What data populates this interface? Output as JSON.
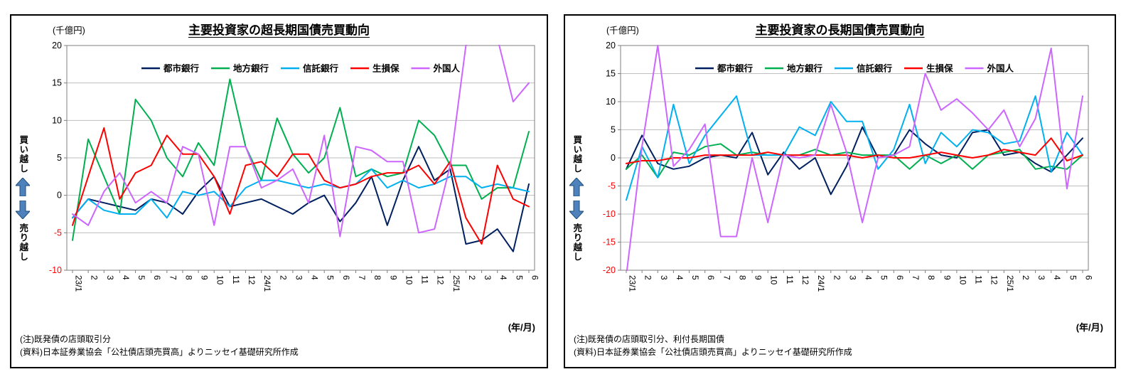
{
  "chart_data": [
    {
      "type": "line",
      "title": "主要投資家の超長期国債売買動向",
      "unit": "(千億円)",
      "x_caption": "(年/月)",
      "buy_label": "買い越し",
      "sell_label": "売り越し",
      "grid": true,
      "legend_position": "top-inside",
      "ylim": [
        -10,
        20
      ],
      "ytick_step": 5,
      "categories": [
        "23/1",
        "2",
        "3",
        "4",
        "5",
        "6",
        "7",
        "8",
        "9",
        "10",
        "11",
        "12",
        "24/1",
        "2",
        "3",
        "4",
        "5",
        "6",
        "7",
        "8",
        "9",
        "10",
        "11",
        "12",
        "25/1",
        "2",
        "3",
        "4",
        "5",
        "6"
      ],
      "series": [
        {
          "name": "都市銀行",
          "color": "#002060",
          "values": [
            -3,
            -0.5,
            -1,
            -1.5,
            -2,
            -0.5,
            -1,
            -2.5,
            0.5,
            2.5,
            -1.5,
            -1,
            -0.5,
            -1.5,
            -2.5,
            -1,
            0,
            -3.5,
            -1,
            2.5,
            -4,
            2,
            6.5,
            2,
            3.5,
            -6.5,
            -6,
            -4.5,
            -7.5,
            1.5
          ]
        },
        {
          "name": "地方銀行",
          "color": "#00B050",
          "values": [
            -6,
            7.5,
            2.5,
            -2.5,
            12.8,
            10,
            5,
            2.5,
            7,
            4,
            15.5,
            6.5,
            2,
            10.3,
            5.5,
            3,
            5,
            11.7,
            2.5,
            3.5,
            2.5,
            3,
            10,
            8,
            4,
            4,
            -0.5,
            1,
            1,
            8.5
          ]
        },
        {
          "name": "信託銀行",
          "color": "#00B0F0",
          "values": [
            -3,
            -0.5,
            -2,
            -2.5,
            -2.5,
            -0.5,
            -3,
            0.5,
            0,
            0.5,
            -1.5,
            1,
            2,
            2,
            1.5,
            1,
            1.5,
            1,
            1.5,
            3.5,
            1,
            2,
            1,
            1.5,
            2.5,
            2.5,
            1,
            1.5,
            1,
            0.5
          ]
        },
        {
          "name": "生損保",
          "color": "#FF0000",
          "values": [
            -4,
            2.5,
            9,
            -0.5,
            3,
            4,
            8,
            5.5,
            5.5,
            2.5,
            -2.5,
            4,
            4.5,
            2.5,
            5.5,
            5.5,
            2,
            1,
            1.5,
            2.5,
            3,
            3,
            4,
            1.5,
            4.5,
            -3,
            -6.5,
            4,
            -0.5,
            -1.5
          ]
        },
        {
          "name": "外国人",
          "color": "#CC66FF",
          "values": [
            -2.5,
            -4,
            0.5,
            3,
            -1,
            0.5,
            -1,
            6.5,
            5.5,
            -4,
            6.5,
            6.5,
            1,
            2,
            3.5,
            -1,
            8,
            -5.5,
            6.5,
            6,
            4.5,
            4.5,
            -5,
            -4.5,
            4,
            20,
            24,
            21,
            12.5,
            15
          ]
        }
      ],
      "notes": [
        "(注)既発債の店頭取引分",
        "(資料)日本証券業協会「公社債店頭売買高」よりニッセイ基礎研究所作成"
      ]
    },
    {
      "type": "line",
      "title": "主要投資家の長期国債売買動向",
      "unit": "(千億円)",
      "x_caption": "(年/月)",
      "buy_label": "買い越し",
      "sell_label": "売り越し",
      "grid": true,
      "legend_position": "top-inside",
      "ylim": [
        -20,
        20
      ],
      "ytick_step": 5,
      "categories": [
        "23/1",
        "2",
        "3",
        "4",
        "5",
        "6",
        "7",
        "8",
        "9",
        "10",
        "11",
        "12",
        "24/1",
        "2",
        "3",
        "4",
        "5",
        "6",
        "7",
        "8",
        "9",
        "10",
        "11",
        "12",
        "25/1",
        "2",
        "3",
        "4",
        "5",
        "6"
      ],
      "series": [
        {
          "name": "都市銀行",
          "color": "#002060",
          "values": [
            -2,
            4,
            -1,
            -2,
            -1.5,
            0,
            0.5,
            0,
            4.5,
            -3,
            1,
            -2,
            0,
            -6.5,
            -1.5,
            5.5,
            0,
            0.5,
            5,
            2.5,
            0.5,
            0,
            4.5,
            5,
            0.5,
            1,
            -1,
            -2.5,
            0.5,
            3.5
          ]
        },
        {
          "name": "地方銀行",
          "color": "#00B050",
          "values": [
            -2,
            0.5,
            -3.5,
            1,
            0.5,
            2,
            2.5,
            0.5,
            1,
            0.5,
            0.5,
            0.5,
            1.5,
            0.5,
            1,
            0.5,
            0.5,
            0.5,
            -2,
            0.5,
            -1,
            0.5,
            -2,
            0.5,
            1,
            1.5,
            -2,
            -1.5,
            -2,
            0.5
          ]
        },
        {
          "name": "信託銀行",
          "color": "#00B0F0",
          "values": [
            -7.5,
            2,
            -3.5,
            9.5,
            -1,
            4,
            7.5,
            11,
            0.5,
            0.5,
            0.5,
            5.5,
            4,
            10,
            6.5,
            6.5,
            -2,
            1.5,
            9.5,
            -1,
            4.5,
            2,
            5,
            4.5,
            2.5,
            3,
            11,
            -2.5,
            4.5,
            0.5
          ]
        },
        {
          "name": "生損保",
          "color": "#FF0000",
          "values": [
            -1,
            -0.5,
            -0.5,
            0,
            0,
            0.5,
            0.5,
            0.5,
            0.5,
            1,
            0.5,
            0.5,
            0.5,
            0.5,
            0.5,
            0,
            0.5,
            0,
            0,
            0.5,
            1,
            0.5,
            0,
            0.5,
            1.5,
            1,
            0.5,
            3.5,
            -0.5,
            0.5
          ]
        },
        {
          "name": "外国人",
          "color": "#CC66FF",
          "values": [
            -21,
            2,
            20,
            -1.5,
            1.5,
            6,
            -14,
            -14,
            0,
            -11.5,
            0.5,
            0,
            0.5,
            9.5,
            1,
            -11.5,
            0,
            0.5,
            2,
            15,
            8.5,
            10.5,
            8,
            5,
            8.5,
            2,
            7,
            19.5,
            -5.5,
            11
          ]
        }
      ],
      "notes": [
        "(注)既発債の店頭取引分、利付長期国債",
        "(資料)日本証券業協会「公社債店頭売買高」よりニッセイ基礎研究所作成"
      ]
    }
  ],
  "icons": {
    "up_arrow": "buy-direction-arrow",
    "down_arrow": "sell-direction-arrow"
  }
}
